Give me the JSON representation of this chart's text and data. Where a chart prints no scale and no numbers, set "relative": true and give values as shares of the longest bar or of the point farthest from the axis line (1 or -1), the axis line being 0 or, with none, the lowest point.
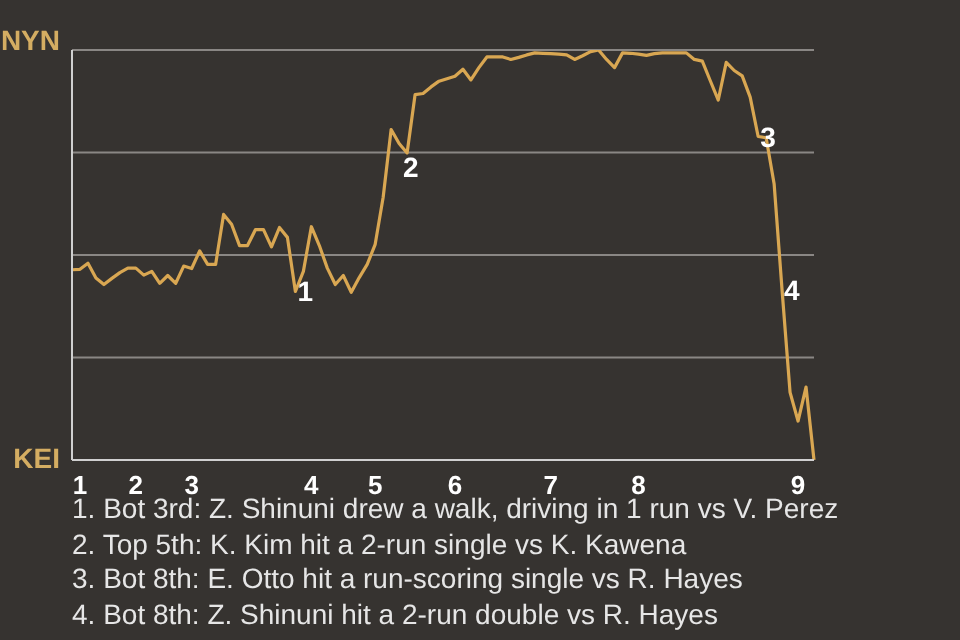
{
  "chart_data": {
    "type": "line",
    "relative": true,
    "categories": [
      null,
      "1",
      null,
      null,
      null,
      null,
      null,
      null,
      "2",
      null,
      null,
      null,
      null,
      null,
      null,
      "3",
      null,
      null,
      null,
      null,
      null,
      null,
      null,
      null,
      null,
      null,
      null,
      null,
      null,
      null,
      "4",
      null,
      null,
      null,
      null,
      null,
      null,
      null,
      "5",
      null,
      null,
      null,
      null,
      null,
      null,
      null,
      null,
      null,
      "6",
      null,
      null,
      null,
      null,
      null,
      null,
      null,
      null,
      null,
      null,
      null,
      "7",
      null,
      null,
      null,
      null,
      null,
      null,
      null,
      null,
      null,
      null,
      "8",
      null,
      null,
      null,
      null,
      null,
      null,
      null,
      null,
      null,
      null,
      null,
      null,
      null,
      null,
      null,
      null,
      null,
      null,
      null,
      "9",
      null,
      null
    ],
    "series": [
      {
        "color": "#d9a752",
        "values": [
          0.464,
          0.465,
          0.48,
          0.444,
          0.428,
          0.443,
          0.457,
          0.468,
          0.468,
          0.451,
          0.46,
          0.431,
          0.45,
          0.431,
          0.473,
          0.467,
          0.51,
          0.477,
          0.477,
          0.599,
          0.575,
          0.523,
          0.523,
          0.562,
          0.562,
          0.52,
          0.567,
          0.543,
          0.411,
          0.46,
          0.569,
          0.523,
          0.468,
          0.428,
          0.45,
          0.409,
          0.445,
          0.477,
          0.526,
          0.641,
          0.806,
          0.772,
          0.749,
          0.891,
          0.894,
          0.91,
          0.924,
          0.93,
          0.936,
          0.953,
          0.927,
          0.957,
          0.983,
          0.983,
          0.983,
          0.977,
          0.982,
          0.988,
          0.993,
          0.992,
          0.991,
          0.99,
          0.988,
          0.977,
          0.986,
          0.996,
          1,
          0.977,
          0.957,
          0.993,
          0.992,
          0.99,
          0.987,
          0.991,
          0.993,
          0.993,
          0.993,
          0.993,
          0.977,
          0.973,
          0.925,
          0.878,
          0.97,
          0.95,
          0.937,
          0.885,
          0.789,
          0.786,
          0.674,
          0.414,
          0.165,
          0.095,
          0.178,
          0
        ]
      }
    ],
    "grid": "y",
    "marker": "none",
    "line_style": "solid",
    "annotations": [
      "NYN",
      "KEI",
      {
        "text": "1",
        "y": 0.411
      },
      {
        "text": "2",
        "y": 0.772
      },
      {
        "text": "3",
        "y": 0.789
      },
      {
        "text": "4",
        "y": 0.414
      },
      "1. Bot 3rd: Z. Shinuni drew a walk, driving in 1 run vs V. Perez",
      "2. Top 5th: K. Kim hit a 2-run single vs K. Kawena",
      "3. Bot 8th: E. Otto hit a run-scoring single vs R. Hayes",
      "4. Bot 8th: Z. Shinuni hit a 2-run double vs R. Hayes"
    ]
  }
}
